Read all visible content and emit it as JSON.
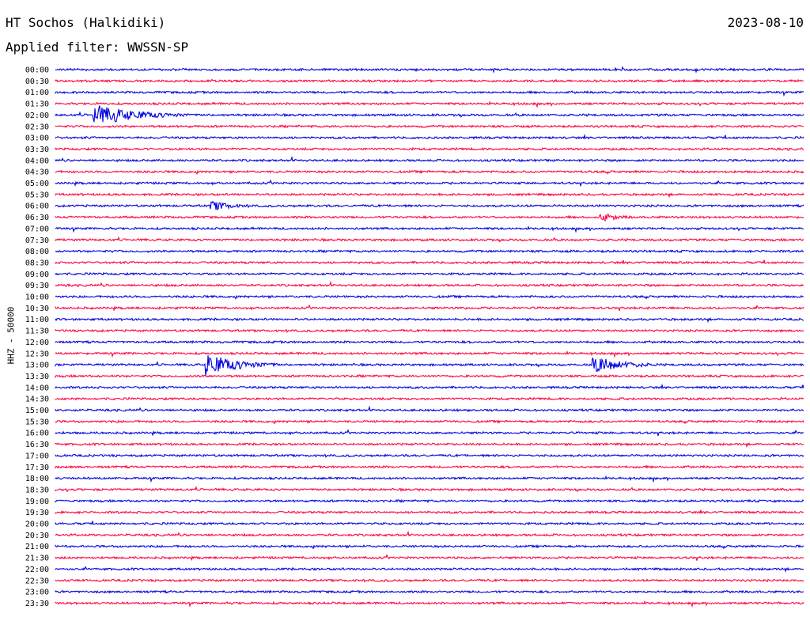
{
  "header": {
    "title": "HT Sochos (Halkidiki)",
    "date": "2023-08-10",
    "filter_text": "Applied filter: WWSSN-SP"
  },
  "chart_data": {
    "type": "line",
    "title": "HT Sochos (Halkidiki)",
    "ylabel": "HHZ - 50000",
    "row_labels": [
      "00:00",
      "00:30",
      "01:00",
      "01:30",
      "02:00",
      "02:30",
      "03:00",
      "03:30",
      "04:00",
      "04:30",
      "05:00",
      "05:30",
      "06:00",
      "06:30",
      "07:00",
      "07:30",
      "08:00",
      "08:30",
      "09:00",
      "09:30",
      "10:00",
      "10:30",
      "11:00",
      "11:30",
      "12:00",
      "12:30",
      "13:00",
      "13:30",
      "14:00",
      "14:30",
      "15:00",
      "15:30",
      "16:00",
      "16:30",
      "17:00",
      "17:30",
      "18:00",
      "18:30",
      "19:00",
      "19:30",
      "20:00",
      "20:30",
      "21:00",
      "21:30",
      "22:00",
      "22:30",
      "23:00",
      "23:30"
    ],
    "row_colors": [
      "#0000e0",
      "#ff0040"
    ],
    "grid": false,
    "events": [
      {
        "row": 4,
        "minute": 1.5,
        "amplitude": 14,
        "duration_min": 4
      },
      {
        "row": 12,
        "minute": 6.2,
        "amplitude": 7,
        "duration_min": 2
      },
      {
        "row": 13,
        "minute": 21.8,
        "amplitude": 6,
        "duration_min": 2
      },
      {
        "row": 26,
        "minute": 6.0,
        "amplitude": 15,
        "duration_min": 3
      },
      {
        "row": 26,
        "minute": 21.5,
        "amplitude": 11,
        "duration_min": 3
      }
    ]
  }
}
